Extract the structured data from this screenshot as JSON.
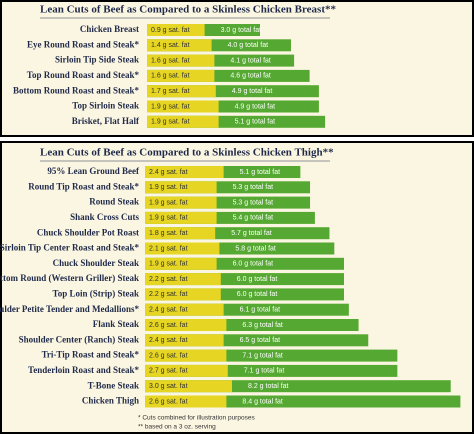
{
  "panels": [
    {
      "title": "Lean Cuts of Beef as Compared to a Skinless Chicken Breast**",
      "rows": [
        {
          "name": "Chicken Breast",
          "sat_fat": 0.9,
          "sat_fat_label": "0.9 g sat. fat",
          "total_fat": 3.0,
          "total_fat_label": "3.0 g total fat"
        },
        {
          "name": "Eye Round Roast and Steak*",
          "sat_fat": 1.4,
          "sat_fat_label": "1.4 g sat. fat",
          "total_fat": 4.0,
          "total_fat_label": "4.0 g total fat"
        },
        {
          "name": "Sirloin Tip Side Steak",
          "sat_fat": 1.6,
          "sat_fat_label": "1.6 g sat. fat",
          "total_fat": 4.1,
          "total_fat_label": "4.1 g total fat"
        },
        {
          "name": "Top Round Roast and Steak*",
          "sat_fat": 1.6,
          "sat_fat_label": "1.6 g sat. fat",
          "total_fat": 4.6,
          "total_fat_label": "4.6 g total fat"
        },
        {
          "name": "Bottom Round Roast and Steak*",
          "sat_fat": 1.7,
          "sat_fat_label": "1.7 g sat. fat",
          "total_fat": 4.9,
          "total_fat_label": "4.9 g total fat"
        },
        {
          "name": "Top Sirloin Steak",
          "sat_fat": 1.9,
          "sat_fat_label": "1.9 g sat. fat",
          "total_fat": 4.9,
          "total_fat_label": "4.9 g total fat"
        },
        {
          "name": "Brisket, Flat Half",
          "sat_fat": 1.9,
          "sat_fat_label": "1.9 g sat. fat",
          "total_fat": 5.1,
          "total_fat_label": "5.1 g total fat"
        }
      ]
    },
    {
      "title": "Lean Cuts of Beef as Compared to a Skinless Chicken Thigh**",
      "rows": [
        {
          "name": "95% Lean Ground Beef",
          "sat_fat": 2.4,
          "sat_fat_label": "2.4 g sat. fat",
          "total_fat": 5.1,
          "total_fat_label": "5.1 g total fat"
        },
        {
          "name": "Round Tip Roast and Steak*",
          "sat_fat": 1.9,
          "sat_fat_label": "1.9 g sat. fat",
          "total_fat": 5.3,
          "total_fat_label": "5.3 g total fat"
        },
        {
          "name": "Round Steak",
          "sat_fat": 1.9,
          "sat_fat_label": "1.9 g sat. fat",
          "total_fat": 5.3,
          "total_fat_label": "5.3 g total fat"
        },
        {
          "name": "Shank Cross Cuts",
          "sat_fat": 1.9,
          "sat_fat_label": "1.9 g sat. fat",
          "total_fat": 5.4,
          "total_fat_label": "5.4 g total fat"
        },
        {
          "name": "Chuck Shoulder Pot Roast",
          "sat_fat": 1.8,
          "sat_fat_label": "1.8 g sat. fat",
          "total_fat": 5.7,
          "total_fat_label": "5.7 g total fat"
        },
        {
          "name": "Sirloin Tip Center Roast and Steak*",
          "sat_fat": 2.1,
          "sat_fat_label": "2.1 g sat. fat",
          "total_fat": 5.8,
          "total_fat_label": "5.8 g total fat"
        },
        {
          "name": "Chuck Shoulder Steak",
          "sat_fat": 1.9,
          "sat_fat_label": "1.9 g sat. fat",
          "total_fat": 6.0,
          "total_fat_label": "6.0 g total fat"
        },
        {
          "name": "Bottom Round (Western Griller) Steak",
          "sat_fat": 2.2,
          "sat_fat_label": "2.2 g sat. fat",
          "total_fat": 6.0,
          "total_fat_label": "6.0 g total fat"
        },
        {
          "name": "Top Loin (Strip) Steak",
          "sat_fat": 2.2,
          "sat_fat_label": "2.2 g sat. fat",
          "total_fat": 6.0,
          "total_fat_label": "6.0 g total fat"
        },
        {
          "name": "Shoulder Petite Tender and Medallions*",
          "sat_fat": 2.4,
          "sat_fat_label": "2.4 g sat. fat",
          "total_fat": 6.1,
          "total_fat_label": "6.1 g total fat"
        },
        {
          "name": "Flank Steak",
          "sat_fat": 2.6,
          "sat_fat_label": "2.6 g sat. fat",
          "total_fat": 6.3,
          "total_fat_label": "6.3 g total fat"
        },
        {
          "name": "Shoulder Center (Ranch) Steak",
          "sat_fat": 2.4,
          "sat_fat_label": "2.4 g sat. fat",
          "total_fat": 6.5,
          "total_fat_label": "6.5 g total fat"
        },
        {
          "name": "Tri-Tip Roast and Steak*",
          "sat_fat": 2.6,
          "sat_fat_label": "2.6 g sat. fat",
          "total_fat": 7.1,
          "total_fat_label": "7.1 g total fat"
        },
        {
          "name": "Tenderloin Roast and Steak*",
          "sat_fat": 2.7,
          "sat_fat_label": "2.7 g sat. fat",
          "total_fat": 7.1,
          "total_fat_label": "7.1 g total fat"
        },
        {
          "name": "T-Bone Steak",
          "sat_fat": 3.0,
          "sat_fat_label": "3.0 g sat. fat",
          "total_fat": 8.2,
          "total_fat_label": "8.2 g total fat"
        },
        {
          "name": "Chicken Thigh",
          "sat_fat": 2.6,
          "sat_fat_label": "2.6 g sat. fat",
          "total_fat": 8.4,
          "total_fat_label": "8.4 g total fat"
        }
      ]
    }
  ],
  "footnotes": [
    "* Cuts combined for illustration purposes",
    "** based on a 3 oz. serving"
  ]
}
